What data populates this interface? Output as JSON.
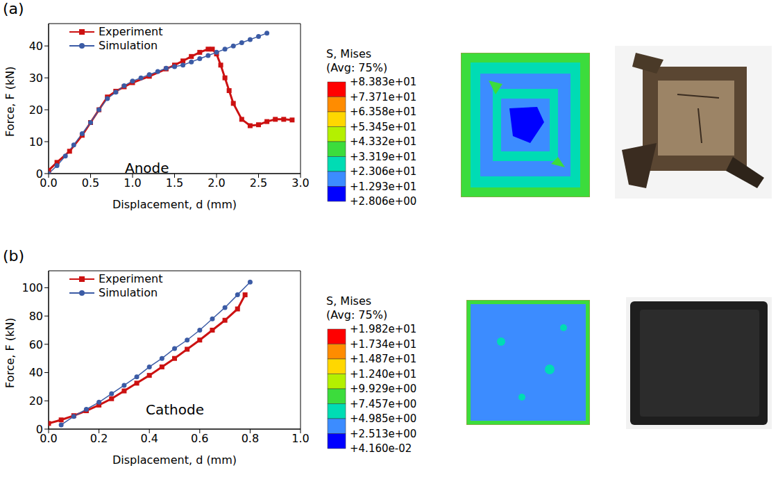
{
  "chart_data": [
    {
      "type": "line",
      "panel_label": "(a)",
      "annotation": "Anode",
      "x_label": "Displacement, d (mm)",
      "y_label": "Force, F (kN)",
      "xlim": [
        0,
        3
      ],
      "xticks": [
        {
          "value": 0,
          "label": "0.0"
        },
        {
          "value": 0.5,
          "label": "0.5"
        },
        {
          "value": 1,
          "label": "1.0"
        },
        {
          "value": 1.5,
          "label": "1.5"
        },
        {
          "value": 2,
          "label": "2.0"
        },
        {
          "value": 2.5,
          "label": "2.5"
        },
        {
          "value": 3,
          "label": "3.0"
        }
      ],
      "ylim": [
        0,
        47
      ],
      "yticks": [
        0,
        10,
        20,
        30,
        40
      ],
      "legend": "upper left",
      "series": [
        {
          "name": "Experiment",
          "color": "#cc1111",
          "marker": "square",
          "x": [
            0,
            0.1,
            0.25,
            0.4,
            0.5,
            0.6,
            0.7,
            0.8,
            0.9,
            1.0,
            1.2,
            1.4,
            1.5,
            1.6,
            1.7,
            1.8,
            1.9,
            1.95,
            2.0,
            2.05,
            2.1,
            2.15,
            2.2,
            2.3,
            2.4,
            2.5,
            2.6,
            2.7,
            2.8,
            2.9
          ],
          "values": [
            1,
            3.5,
            7,
            12,
            16,
            20,
            24,
            25.8,
            27.2,
            28.5,
            30.5,
            32.8,
            34,
            35.3,
            36.7,
            38,
            39,
            39,
            37.5,
            34,
            30,
            26,
            22,
            17,
            15,
            15.3,
            16.3,
            17,
            17,
            16.8
          ]
        },
        {
          "name": "Simulation",
          "color": "#3b5ba5",
          "marker": "circle",
          "x": [
            0,
            0.1,
            0.2,
            0.3,
            0.4,
            0.5,
            0.6,
            0.7,
            0.8,
            0.9,
            1.0,
            1.1,
            1.2,
            1.3,
            1.4,
            1.5,
            1.6,
            1.7,
            1.8,
            1.9,
            2.0,
            2.1,
            2.2,
            2.3,
            2.4,
            2.5,
            2.6
          ],
          "values": [
            0,
            2.5,
            5.5,
            9,
            12.5,
            16,
            20,
            23.5,
            25.5,
            27.5,
            29,
            30,
            31,
            32,
            33,
            33.5,
            34,
            35,
            36,
            37,
            38,
            39,
            40,
            41,
            42,
            43,
            44
          ]
        }
      ],
      "contour_legend": {
        "title": "S, Mises",
        "subtitle": "(Avg: 75%)",
        "ticks": [
          {
            "value": 83.83,
            "label": "+8.383e+01"
          },
          {
            "value": 73.71,
            "label": "+7.371e+01"
          },
          {
            "value": 63.58,
            "label": "+6.358e+01"
          },
          {
            "value": 53.45,
            "label": "+5.345e+01"
          },
          {
            "value": 43.32,
            "label": "+4.332e+01"
          },
          {
            "value": 33.19,
            "label": "+3.319e+01"
          },
          {
            "value": 23.06,
            "label": "+2.306e+01"
          },
          {
            "value": 12.93,
            "label": "+1.293e+01"
          },
          {
            "value": 2.806,
            "label": "+2.806e+00"
          }
        ],
        "colors": [
          "#ff0000",
          "#ff8c00",
          "#ffd700",
          "#b4f000",
          "#3cdc3c",
          "#00dcb4",
          "#3c8cff",
          "#0000ff"
        ]
      }
    },
    {
      "type": "line",
      "panel_label": "(b)",
      "annotation": "Cathode",
      "x_label": "Displacement, d (mm)",
      "y_label": "Force, F (kN)",
      "xlim": [
        0,
        1
      ],
      "xticks": [
        {
          "value": 0,
          "label": "0.0"
        },
        {
          "value": 0.2,
          "label": "0.2"
        },
        {
          "value": 0.4,
          "label": "0.4"
        },
        {
          "value": 0.6,
          "label": "0.6"
        },
        {
          "value": 0.8,
          "label": "0.8"
        },
        {
          "value": 1,
          "label": "1.0"
        }
      ],
      "ylim": [
        0,
        112
      ],
      "yticks": [
        0,
        20,
        40,
        60,
        80,
        100
      ],
      "legend": "upper left",
      "series": [
        {
          "name": "Experiment",
          "color": "#cc1111",
          "marker": "square",
          "x": [
            0,
            0.05,
            0.1,
            0.15,
            0.2,
            0.25,
            0.3,
            0.35,
            0.4,
            0.45,
            0.5,
            0.55,
            0.6,
            0.65,
            0.7,
            0.75,
            0.78
          ],
          "values": [
            4,
            6.5,
            9.5,
            13,
            17,
            21.5,
            27,
            32.5,
            38,
            44,
            50,
            56.5,
            63,
            70,
            77,
            85,
            95
          ]
        },
        {
          "name": "Simulation",
          "color": "#3b5ba5",
          "marker": "circle",
          "x": [
            0.05,
            0.1,
            0.15,
            0.2,
            0.25,
            0.3,
            0.35,
            0.4,
            0.45,
            0.5,
            0.55,
            0.6,
            0.65,
            0.7,
            0.75,
            0.8
          ],
          "values": [
            3,
            9,
            14,
            19,
            25,
            31,
            37,
            44,
            50,
            57,
            63,
            70,
            78,
            86,
            95,
            104
          ]
        }
      ],
      "contour_legend": {
        "title": "S, Mises",
        "subtitle": "(Avg: 75%)",
        "ticks": [
          {
            "value": 19.82,
            "label": "+1.982e+01"
          },
          {
            "value": 17.34,
            "label": "+1.734e+01"
          },
          {
            "value": 14.87,
            "label": "+1.487e+01"
          },
          {
            "value": 12.4,
            "label": "+1.240e+01"
          },
          {
            "value": 9.929,
            "label": "+9.929e+00"
          },
          {
            "value": 7.457,
            "label": "+7.457e+00"
          },
          {
            "value": 4.985,
            "label": "+4.985e+00"
          },
          {
            "value": 2.513,
            "label": "+2.513e+00"
          },
          {
            "value": 0.0416,
            "label": "+4.160e-02"
          }
        ],
        "colors": [
          "#ff0000",
          "#ff8c00",
          "#ffd700",
          "#b4f000",
          "#3cdc3c",
          "#00dcb4",
          "#3c8cff",
          "#0000ff"
        ]
      }
    }
  ]
}
